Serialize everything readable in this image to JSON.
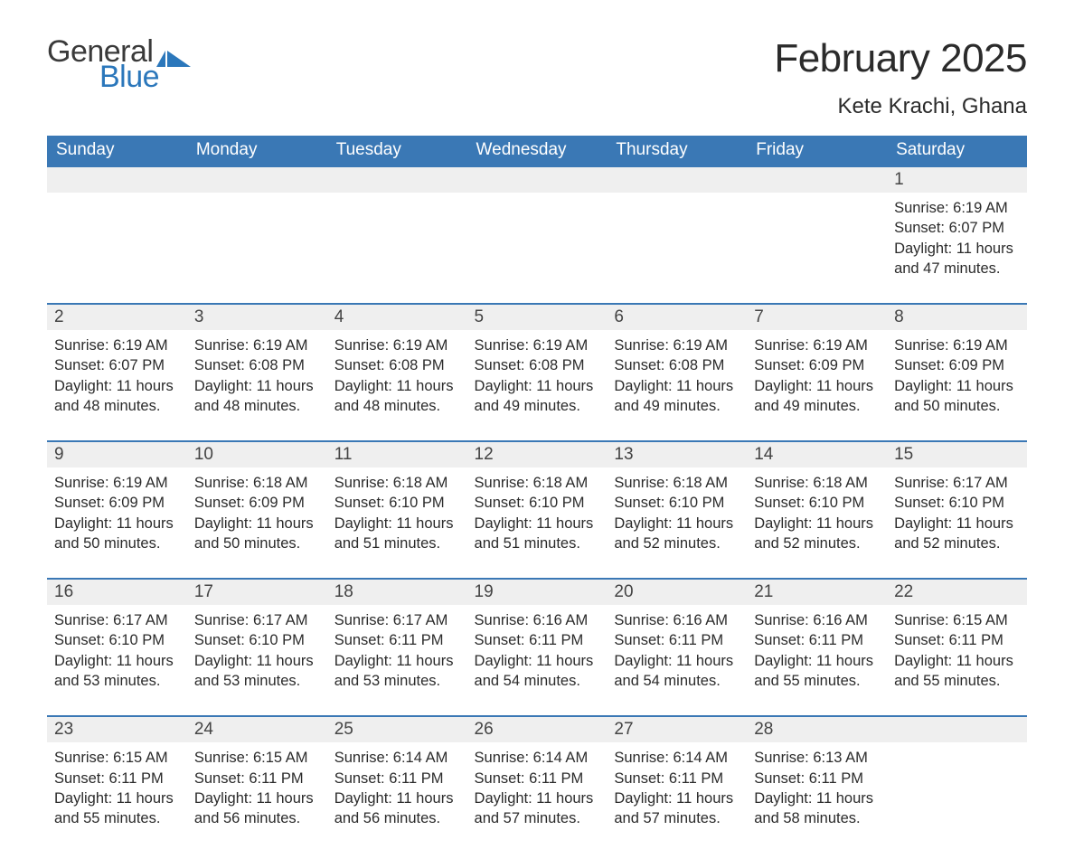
{
  "logo": {
    "text1": "General",
    "text2": "Blue",
    "flag_color": "#2b77bb"
  },
  "title": "February 2025",
  "location": "Kete Krachi, Ghana",
  "colors": {
    "header_bg": "#3a78b5",
    "header_text": "#ffffff",
    "daynum_bg": "#efefef",
    "daynum_border": "#3a78b5",
    "body_text": "#2b2b2b",
    "page_bg": "#ffffff"
  },
  "weekday_labels": [
    "Sunday",
    "Monday",
    "Tuesday",
    "Wednesday",
    "Thursday",
    "Friday",
    "Saturday"
  ],
  "weeks": [
    [
      null,
      null,
      null,
      null,
      null,
      null,
      {
        "n": "1",
        "sunrise": "Sunrise: 6:19 AM",
        "sunset": "Sunset: 6:07 PM",
        "daylight1": "Daylight: 11 hours",
        "daylight2": "and 47 minutes."
      }
    ],
    [
      {
        "n": "2",
        "sunrise": "Sunrise: 6:19 AM",
        "sunset": "Sunset: 6:07 PM",
        "daylight1": "Daylight: 11 hours",
        "daylight2": "and 48 minutes."
      },
      {
        "n": "3",
        "sunrise": "Sunrise: 6:19 AM",
        "sunset": "Sunset: 6:08 PM",
        "daylight1": "Daylight: 11 hours",
        "daylight2": "and 48 minutes."
      },
      {
        "n": "4",
        "sunrise": "Sunrise: 6:19 AM",
        "sunset": "Sunset: 6:08 PM",
        "daylight1": "Daylight: 11 hours",
        "daylight2": "and 48 minutes."
      },
      {
        "n": "5",
        "sunrise": "Sunrise: 6:19 AM",
        "sunset": "Sunset: 6:08 PM",
        "daylight1": "Daylight: 11 hours",
        "daylight2": "and 49 minutes."
      },
      {
        "n": "6",
        "sunrise": "Sunrise: 6:19 AM",
        "sunset": "Sunset: 6:08 PM",
        "daylight1": "Daylight: 11 hours",
        "daylight2": "and 49 minutes."
      },
      {
        "n": "7",
        "sunrise": "Sunrise: 6:19 AM",
        "sunset": "Sunset: 6:09 PM",
        "daylight1": "Daylight: 11 hours",
        "daylight2": "and 49 minutes."
      },
      {
        "n": "8",
        "sunrise": "Sunrise: 6:19 AM",
        "sunset": "Sunset: 6:09 PM",
        "daylight1": "Daylight: 11 hours",
        "daylight2": "and 50 minutes."
      }
    ],
    [
      {
        "n": "9",
        "sunrise": "Sunrise: 6:19 AM",
        "sunset": "Sunset: 6:09 PM",
        "daylight1": "Daylight: 11 hours",
        "daylight2": "and 50 minutes."
      },
      {
        "n": "10",
        "sunrise": "Sunrise: 6:18 AM",
        "sunset": "Sunset: 6:09 PM",
        "daylight1": "Daylight: 11 hours",
        "daylight2": "and 50 minutes."
      },
      {
        "n": "11",
        "sunrise": "Sunrise: 6:18 AM",
        "sunset": "Sunset: 6:10 PM",
        "daylight1": "Daylight: 11 hours",
        "daylight2": "and 51 minutes."
      },
      {
        "n": "12",
        "sunrise": "Sunrise: 6:18 AM",
        "sunset": "Sunset: 6:10 PM",
        "daylight1": "Daylight: 11 hours",
        "daylight2": "and 51 minutes."
      },
      {
        "n": "13",
        "sunrise": "Sunrise: 6:18 AM",
        "sunset": "Sunset: 6:10 PM",
        "daylight1": "Daylight: 11 hours",
        "daylight2": "and 52 minutes."
      },
      {
        "n": "14",
        "sunrise": "Sunrise: 6:18 AM",
        "sunset": "Sunset: 6:10 PM",
        "daylight1": "Daylight: 11 hours",
        "daylight2": "and 52 minutes."
      },
      {
        "n": "15",
        "sunrise": "Sunrise: 6:17 AM",
        "sunset": "Sunset: 6:10 PM",
        "daylight1": "Daylight: 11 hours",
        "daylight2": "and 52 minutes."
      }
    ],
    [
      {
        "n": "16",
        "sunrise": "Sunrise: 6:17 AM",
        "sunset": "Sunset: 6:10 PM",
        "daylight1": "Daylight: 11 hours",
        "daylight2": "and 53 minutes."
      },
      {
        "n": "17",
        "sunrise": "Sunrise: 6:17 AM",
        "sunset": "Sunset: 6:10 PM",
        "daylight1": "Daylight: 11 hours",
        "daylight2": "and 53 minutes."
      },
      {
        "n": "18",
        "sunrise": "Sunrise: 6:17 AM",
        "sunset": "Sunset: 6:11 PM",
        "daylight1": "Daylight: 11 hours",
        "daylight2": "and 53 minutes."
      },
      {
        "n": "19",
        "sunrise": "Sunrise: 6:16 AM",
        "sunset": "Sunset: 6:11 PM",
        "daylight1": "Daylight: 11 hours",
        "daylight2": "and 54 minutes."
      },
      {
        "n": "20",
        "sunrise": "Sunrise: 6:16 AM",
        "sunset": "Sunset: 6:11 PM",
        "daylight1": "Daylight: 11 hours",
        "daylight2": "and 54 minutes."
      },
      {
        "n": "21",
        "sunrise": "Sunrise: 6:16 AM",
        "sunset": "Sunset: 6:11 PM",
        "daylight1": "Daylight: 11 hours",
        "daylight2": "and 55 minutes."
      },
      {
        "n": "22",
        "sunrise": "Sunrise: 6:15 AM",
        "sunset": "Sunset: 6:11 PM",
        "daylight1": "Daylight: 11 hours",
        "daylight2": "and 55 minutes."
      }
    ],
    [
      {
        "n": "23",
        "sunrise": "Sunrise: 6:15 AM",
        "sunset": "Sunset: 6:11 PM",
        "daylight1": "Daylight: 11 hours",
        "daylight2": "and 55 minutes."
      },
      {
        "n": "24",
        "sunrise": "Sunrise: 6:15 AM",
        "sunset": "Sunset: 6:11 PM",
        "daylight1": "Daylight: 11 hours",
        "daylight2": "and 56 minutes."
      },
      {
        "n": "25",
        "sunrise": "Sunrise: 6:14 AM",
        "sunset": "Sunset: 6:11 PM",
        "daylight1": "Daylight: 11 hours",
        "daylight2": "and 56 minutes."
      },
      {
        "n": "26",
        "sunrise": "Sunrise: 6:14 AM",
        "sunset": "Sunset: 6:11 PM",
        "daylight1": "Daylight: 11 hours",
        "daylight2": "and 57 minutes."
      },
      {
        "n": "27",
        "sunrise": "Sunrise: 6:14 AM",
        "sunset": "Sunset: 6:11 PM",
        "daylight1": "Daylight: 11 hours",
        "daylight2": "and 57 minutes."
      },
      {
        "n": "28",
        "sunrise": "Sunrise: 6:13 AM",
        "sunset": "Sunset: 6:11 PM",
        "daylight1": "Daylight: 11 hours",
        "daylight2": "and 58 minutes."
      },
      null
    ]
  ]
}
